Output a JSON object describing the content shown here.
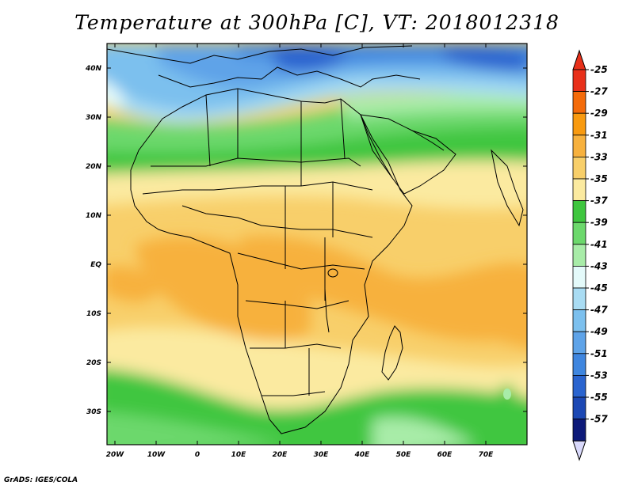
{
  "title": "Temperature at 300hPa [C], VT: 2018012318",
  "footer": "GrADS: IGES/COLA",
  "map": {
    "lat_ticks": [
      "40N",
      "30N",
      "20N",
      "10N",
      "EQ",
      "10S",
      "20S",
      "30S"
    ],
    "lon_ticks": [
      "20W",
      "10W",
      "0",
      "10E",
      "20E",
      "30E",
      "40E",
      "50E",
      "60E",
      "70E"
    ]
  },
  "colorbar": {
    "labels": [
      "-25",
      "-27",
      "-29",
      "-31",
      "-33",
      "-35",
      "-37",
      "-39",
      "-41",
      "-43",
      "-45",
      "-47",
      "-49",
      "-51",
      "-53",
      "-55",
      "-57"
    ],
    "colors": [
      "#e8301a",
      "#f46b0a",
      "#f89a10",
      "#f7b13e",
      "#f8cf6a",
      "#fbeaa0",
      "#3fc63f",
      "#6cd86c",
      "#a8eca8",
      "#e4fafa",
      "#a9dcf3",
      "#7cc0ee",
      "#5ea3e8",
      "#3f86df",
      "#2a64cf",
      "#1c48b4",
      "#0d1a79"
    ],
    "top_arrow_color": "#e8301a",
    "bottom_arrow_color": "#d9d9fb"
  }
}
